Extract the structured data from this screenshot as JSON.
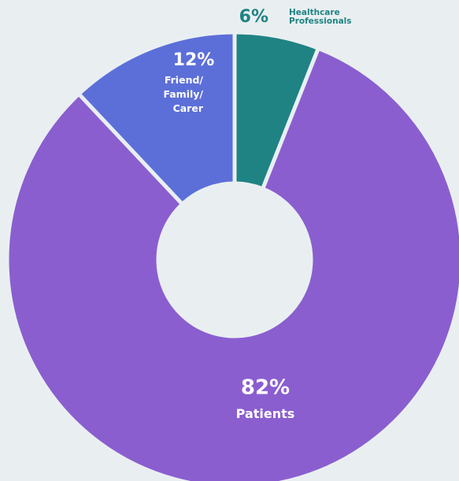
{
  "chart_data": {
    "type": "donut",
    "categories": [
      "Healthcare Professionals",
      "Patients",
      "Friend/Family/Carer"
    ],
    "values": [
      6,
      82,
      12
    ],
    "value_labels": [
      "6%",
      "82%",
      "12%"
    ],
    "colors": [
      "#1f8383",
      "#8a5ecf",
      "#5c6fd8"
    ]
  }
}
